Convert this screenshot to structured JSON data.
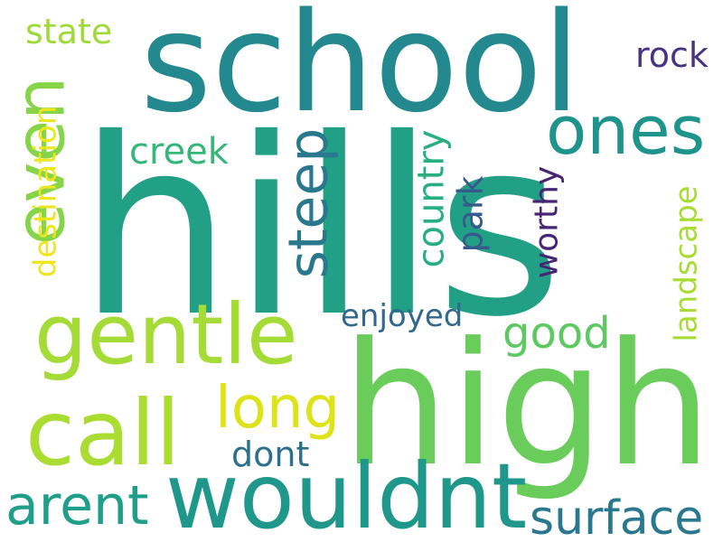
{
  "words": {
    "hills": {
      "text": "hills",
      "color": "#21A085"
    },
    "school": {
      "text": "school",
      "color": "#23898E"
    },
    "high": {
      "text": "high",
      "color": "#6ACD5B"
    },
    "wouldnt": {
      "text": "wouldnt",
      "color": "#1F978B"
    },
    "gentle": {
      "text": "gentle",
      "color": "#A5DB36"
    },
    "call": {
      "text": "call",
      "color": "#AADC32"
    },
    "even": {
      "text": "even",
      "color": "#86D549"
    },
    "ones": {
      "text": "ones",
      "color": "#1F948C"
    },
    "long": {
      "text": "long",
      "color": "#DDE318"
    },
    "steep": {
      "text": "steep",
      "color": "#2A788E"
    },
    "arent": {
      "text": "arent",
      "color": "#1F9E89"
    },
    "surface": {
      "text": "surface",
      "color": "#2A788E"
    },
    "good": {
      "text": "good",
      "color": "#5EC962"
    },
    "country": {
      "text": "country",
      "color": "#29AF7F"
    },
    "creek": {
      "text": "creek",
      "color": "#35B779"
    },
    "park": {
      "text": "park",
      "color": "#38598C"
    },
    "worthy": {
      "text": "worthy",
      "color": "#482475"
    },
    "landscape": {
      "text": "landscape",
      "color": "#A8DB34"
    },
    "destination": {
      "text": "destination",
      "color": "#EFE51C"
    },
    "state": {
      "text": "state",
      "color": "#9FDA3A"
    },
    "rock": {
      "text": "rock",
      "color": "#463480"
    },
    "enjoyed": {
      "text": "enjoyed",
      "color": "#31688E"
    },
    "dont": {
      "text": "dont",
      "color": "#2D708E"
    }
  }
}
